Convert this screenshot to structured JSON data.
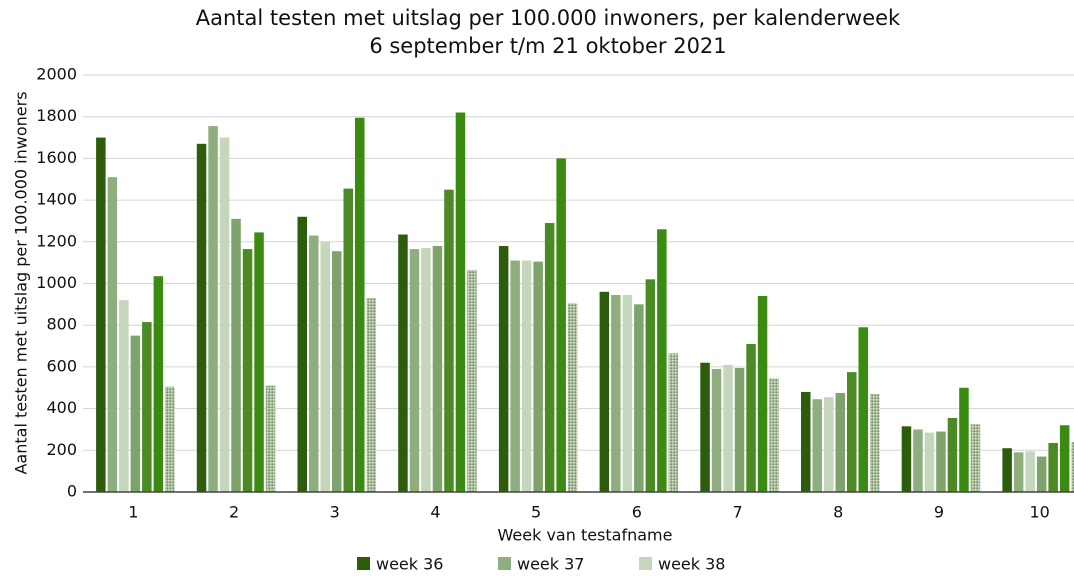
{
  "chart_data": {
    "type": "bar",
    "title": "Aantal testen met uitslag per 100.000 inwoners, per kalenderweek",
    "subtitle": "6 september t/m 21 oktober 2021",
    "xlabel": "Week van testafname",
    "ylabel": "Aantal testen met uitslag per 100.000 inwoners",
    "categories": [
      "1",
      "2",
      "3",
      "4",
      "5",
      "6",
      "7",
      "8",
      "9",
      "10"
    ],
    "series": [
      {
        "name": "week 36",
        "color": "#2d5c0c",
        "values": [
          1700,
          1670,
          1320,
          1235,
          1180,
          960,
          620,
          480,
          315,
          210
        ]
      },
      {
        "name": "week 37",
        "color": "#8fae80",
        "values": [
          1510,
          1755,
          1230,
          1165,
          1110,
          945,
          590,
          445,
          300,
          190
        ]
      },
      {
        "name": "week 38",
        "color": "#c4d6bc",
        "values": [
          920,
          1700,
          1200,
          1170,
          1110,
          945,
          610,
          455,
          285,
          195
        ]
      },
      {
        "color": "#7fa36d",
        "values": [
          750,
          1310,
          1155,
          1180,
          1105,
          900,
          595,
          475,
          290,
          170
        ]
      },
      {
        "color": "#4b8a24",
        "values": [
          815,
          1165,
          1455,
          1450,
          1290,
          1020,
          710,
          575,
          355,
          235
        ]
      },
      {
        "color": "#3b8a12",
        "values": [
          1035,
          1245,
          1795,
          1820,
          1600,
          1260,
          940,
          790,
          500,
          320
        ]
      },
      {
        "color": "#a9bd9a",
        "hatched": true,
        "values": [
          505,
          510,
          930,
          1065,
          905,
          665,
          545,
          470,
          325,
          240
        ]
      }
    ],
    "ylim": [
      0,
      2000
    ],
    "yticks": [
      0,
      200,
      400,
      600,
      800,
      1000,
      1200,
      1400,
      1600,
      1800,
      2000
    ],
    "grid": true,
    "legend": "bottom"
  }
}
